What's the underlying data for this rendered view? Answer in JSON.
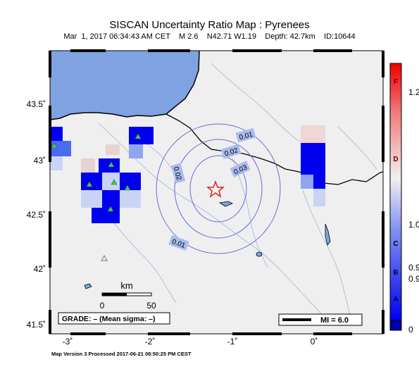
{
  "header": {
    "title": "SISCAN Uncertainty Ratio Map : Pyrenees",
    "subtitle": "Mar  1, 2017 06:34:43 AM CET    M 2.6    N42.71 W1.19    Depth: 42.7km    ID:10644"
  },
  "axes": {
    "lat_labels": [
      "43.5˚",
      "43˚",
      "42.5˚",
      "42˚",
      "41.5˚"
    ],
    "lon_labels": [
      "-3˚",
      "-2˚",
      "-1˚",
      "0˚"
    ]
  },
  "contour_labels": [
    "0.01",
    "0.02",
    "0.03",
    "0.02",
    "0.01"
  ],
  "scale_bar": {
    "unit": "km",
    "min": "0",
    "max": "50"
  },
  "grade_box": "GRADE: – (Mean sigma: –)",
  "mi_legend": "MI = 6.0",
  "colorbar": {
    "letters": [
      "F",
      "D",
      "C",
      "B",
      "A"
    ],
    "values": [
      "1.2",
      "1.0",
      "0.9",
      "0.9",
      "0"
    ]
  },
  "footer": "Map Version 3 Processed 2017-06-21 08:50:25 PM CEST",
  "colors": {
    "sea": "#7fa3e0",
    "land": "#efefef",
    "cell_strong": "#0000ee",
    "cell_light": "#c9d4f5",
    "contour": "#6a6ad8",
    "epicenter": "#dd2222"
  }
}
